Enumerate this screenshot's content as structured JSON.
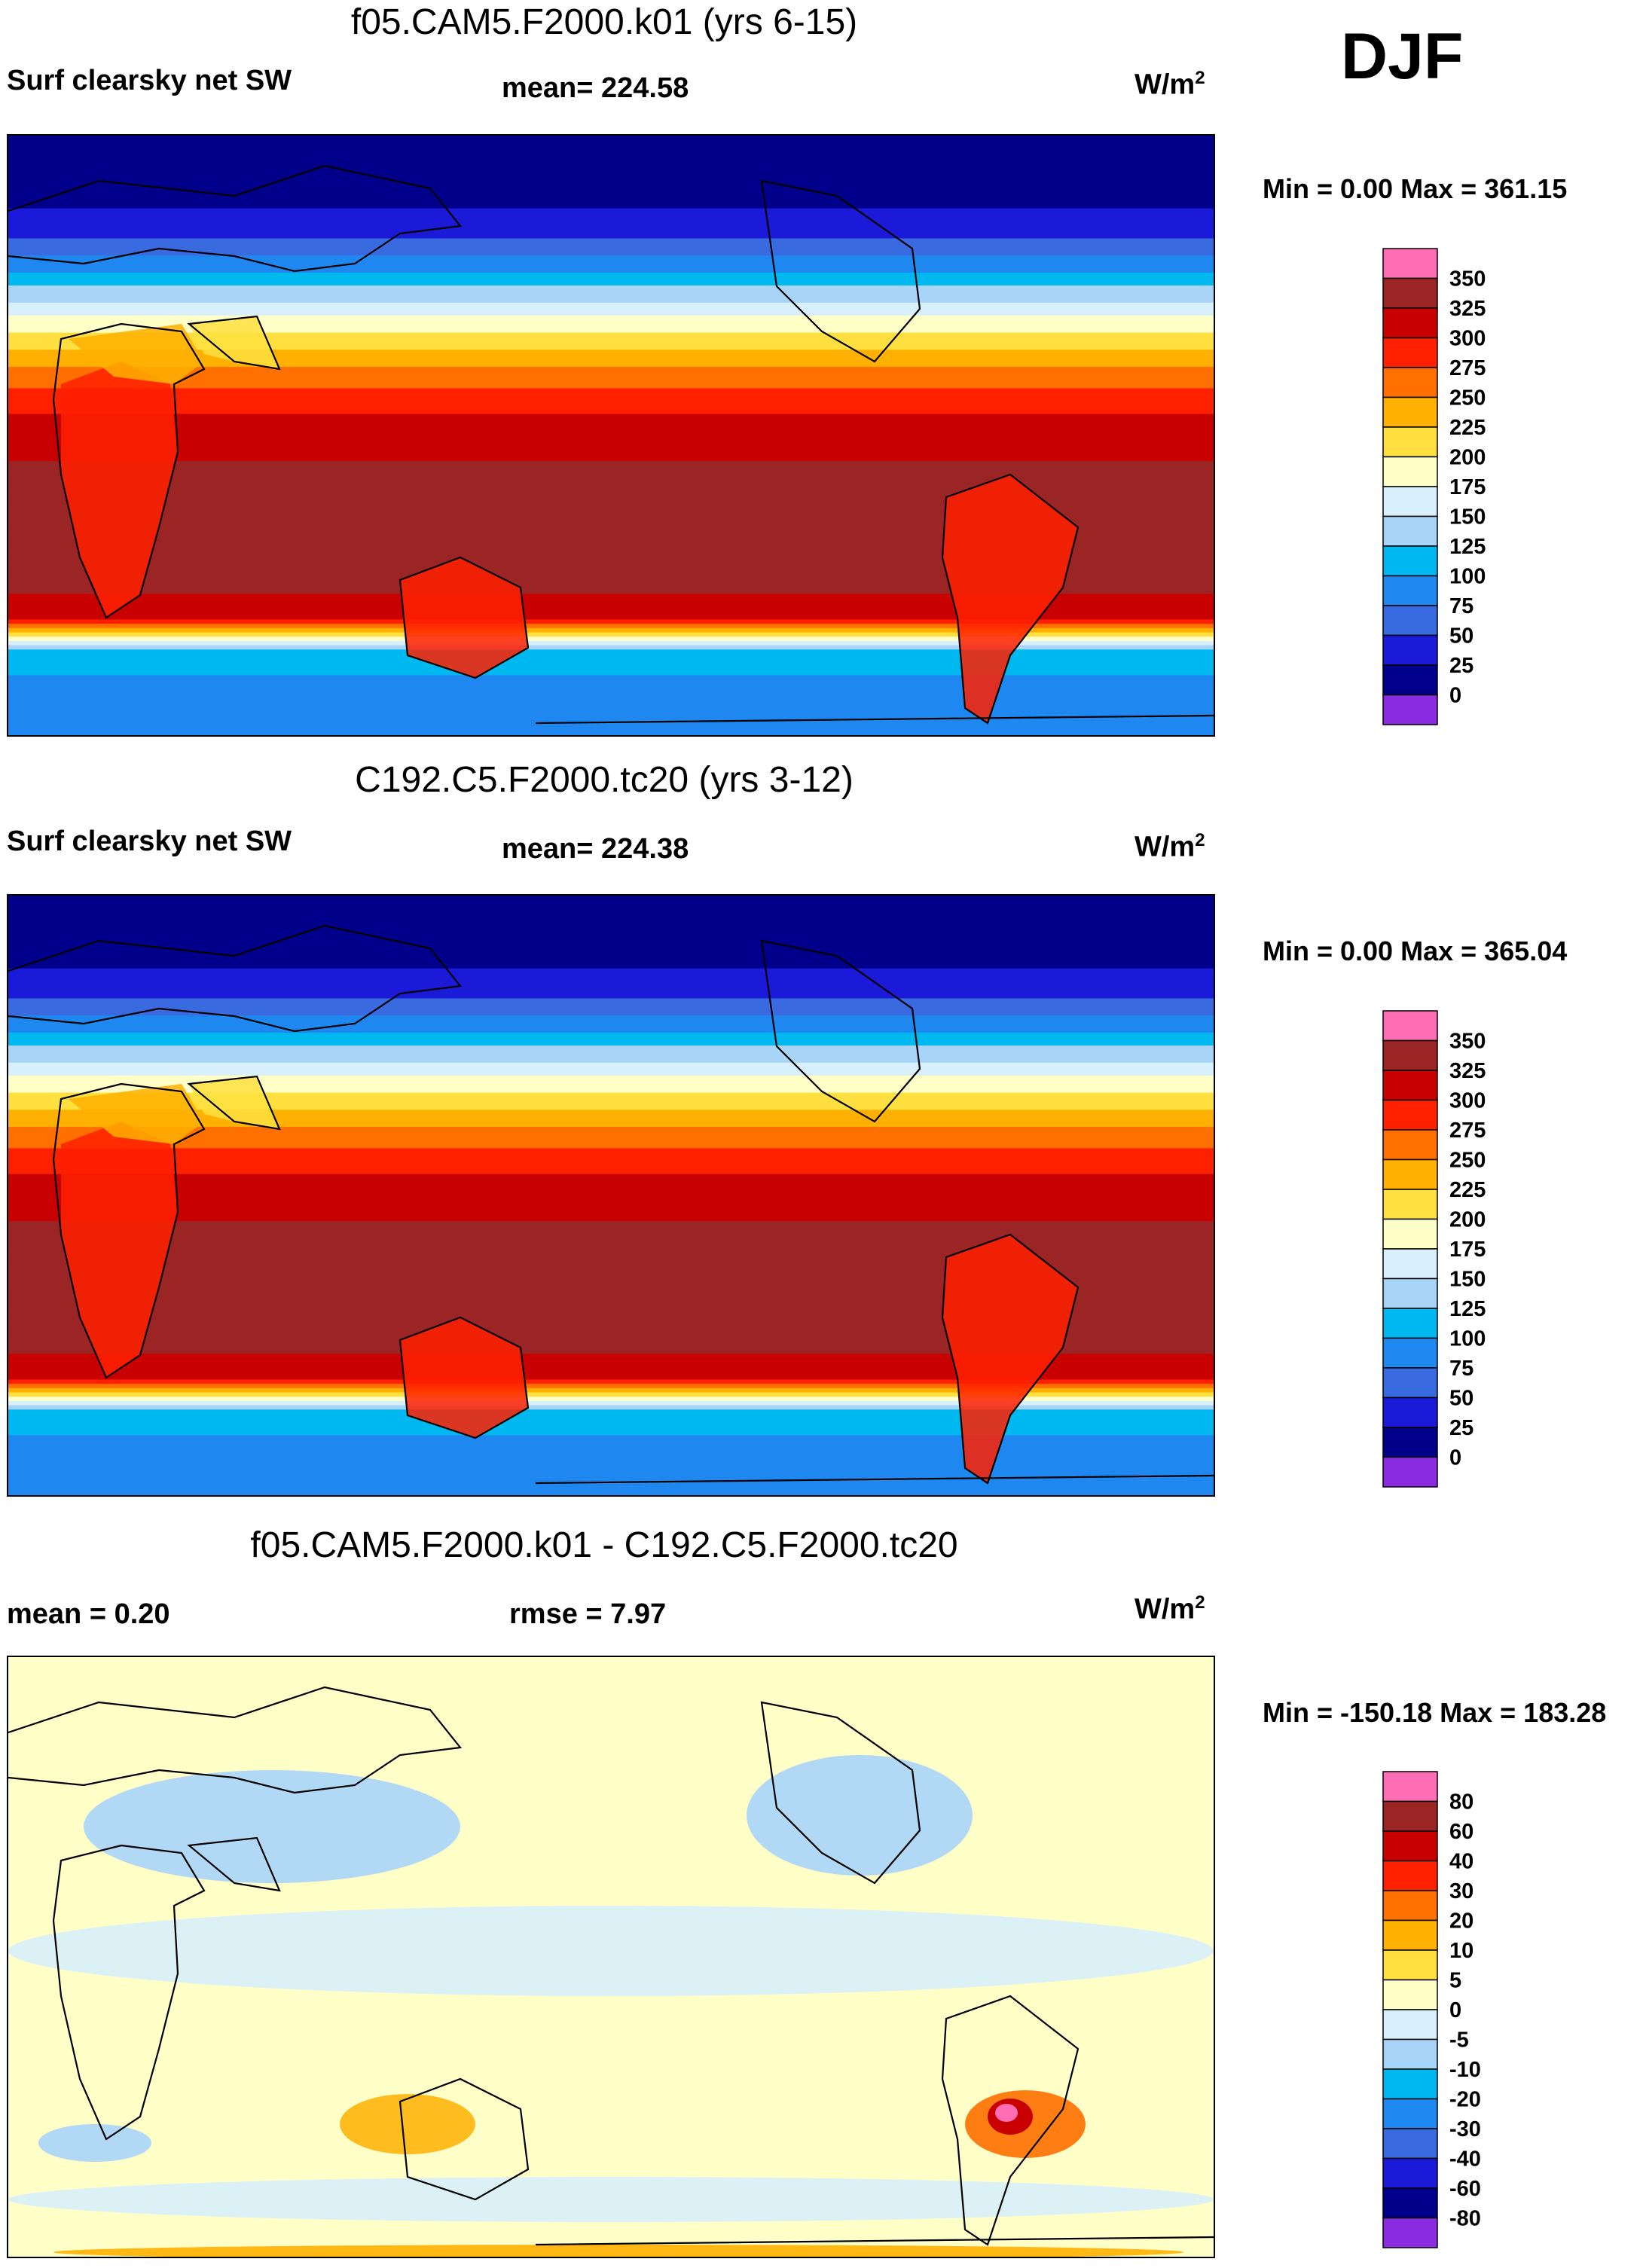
{
  "season": "DJF",
  "colors": {
    "abs_palette": [
      "#8a2be2",
      "#00008b",
      "#1a1ad8",
      "#3a6ae0",
      "#1e88f0",
      "#00b8f0",
      "#a8d4f8",
      "#d8f0fb",
      "#ffffc8",
      "#ffe040",
      "#ffb000",
      "#ff7000",
      "#ff2000",
      "#c80000",
      "#9b2424",
      "#ff6eb4"
    ],
    "diff_palette": [
      "#8a2be2",
      "#00008b",
      "#1a1ad8",
      "#3a6ae0",
      "#1e88f0",
      "#00b8f0",
      "#a8d4f8",
      "#d8f0fb",
      "#ffffc8",
      "#ffe040",
      "#ffb000",
      "#ff7000",
      "#ff2000",
      "#c80000",
      "#9b2424",
      "#ff6eb4"
    ]
  },
  "panels": [
    {
      "title": "f05.CAM5.F2000.k01 (yrs 6-15)",
      "left_label": "Surf clearsky net SW",
      "center_label": "mean= 224.58",
      "units": "W/m",
      "units_sup": "2",
      "minmax": "Min =   0.00 Max = 361.15"
    },
    {
      "title": "C192.C5.F2000.tc20 (yrs 3-12)",
      "left_label": "Surf clearsky net SW",
      "center_label": "mean= 224.38",
      "units": "W/m",
      "units_sup": "2",
      "minmax": "Min =   0.00 Max = 365.04"
    },
    {
      "title": "f05.CAM5.F2000.k01 - C192.C5.F2000.tc20",
      "left_label": "mean =   0.20",
      "center_label": "rmse =   7.97",
      "units": "W/m",
      "units_sup": "2",
      "minmax": "Min = -150.18 Max = 183.28"
    }
  ],
  "chart_data": [
    {
      "type": "heatmap",
      "title": "f05.CAM5.F2000.k01 (yrs 6-15)",
      "variable": "Surf clearsky net SW",
      "mean": 224.58,
      "min": 0.0,
      "max": 361.15,
      "units": "W/m2",
      "contour_levels": [
        "350",
        "325",
        "300",
        "275",
        "250",
        "225",
        "200",
        "175",
        "150",
        "125",
        "100",
        "75",
        "50",
        "25",
        "0"
      ],
      "zonal_profile": [
        {
          "lat": 90,
          "value": 0
        },
        {
          "lat": 75,
          "value": 10
        },
        {
          "lat": 60,
          "value": 45
        },
        {
          "lat": 50,
          "value": 95
        },
        {
          "lat": 40,
          "value": 150
        },
        {
          "lat": 30,
          "value": 205
        },
        {
          "lat": 20,
          "value": 255
        },
        {
          "lat": 10,
          "value": 290
        },
        {
          "lat": 0,
          "value": 315
        },
        {
          "lat": -15,
          "value": 335
        },
        {
          "lat": -30,
          "value": 340
        },
        {
          "lat": -45,
          "value": 335
        },
        {
          "lat": -55,
          "value": 300
        },
        {
          "lat": -65,
          "value": 120
        },
        {
          "lat": -80,
          "value": 75
        }
      ]
    },
    {
      "type": "heatmap",
      "title": "C192.C5.F2000.tc20 (yrs 3-12)",
      "variable": "Surf clearsky net SW",
      "mean": 224.38,
      "min": 0.0,
      "max": 365.04,
      "units": "W/m2",
      "contour_levels": [
        "350",
        "325",
        "300",
        "275",
        "250",
        "225",
        "200",
        "175",
        "150",
        "125",
        "100",
        "75",
        "50",
        "25",
        "0"
      ],
      "zonal_profile": [
        {
          "lat": 90,
          "value": 0
        },
        {
          "lat": 75,
          "value": 10
        },
        {
          "lat": 60,
          "value": 45
        },
        {
          "lat": 50,
          "value": 95
        },
        {
          "lat": 40,
          "value": 150
        },
        {
          "lat": 30,
          "value": 205
        },
        {
          "lat": 20,
          "value": 255
        },
        {
          "lat": 10,
          "value": 290
        },
        {
          "lat": 0,
          "value": 315
        },
        {
          "lat": -15,
          "value": 335
        },
        {
          "lat": -30,
          "value": 340
        },
        {
          "lat": -45,
          "value": 335
        },
        {
          "lat": -55,
          "value": 300
        },
        {
          "lat": -65,
          "value": 120
        },
        {
          "lat": -80,
          "value": 75
        }
      ]
    },
    {
      "type": "heatmap",
      "title": "f05.CAM5.F2000.k01 - C192.C5.F2000.tc20",
      "mean": 0.2,
      "rmse": 7.97,
      "min": -150.18,
      "max": 183.28,
      "units": "W/m2",
      "contour_levels": [
        "80",
        "60",
        "40",
        "30",
        "20",
        "10",
        "5",
        "0",
        "-5",
        "-10",
        "-20",
        "-30",
        "-40",
        "-60",
        "-80"
      ],
      "zonal_profile": [
        {
          "lat": 90,
          "value": -2
        },
        {
          "lat": 60,
          "value": -3
        },
        {
          "lat": 40,
          "value": -3
        },
        {
          "lat": 20,
          "value": 0
        },
        {
          "lat": 0,
          "value": -2
        },
        {
          "lat": -20,
          "value": 0
        },
        {
          "lat": -40,
          "value": 2
        },
        {
          "lat": -60,
          "value": 0
        },
        {
          "lat": -80,
          "value": 0
        }
      ]
    }
  ]
}
